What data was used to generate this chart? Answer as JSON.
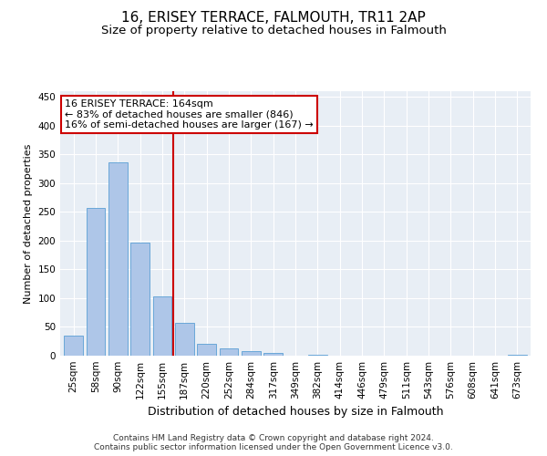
{
  "title": "16, ERISEY TERRACE, FALMOUTH, TR11 2AP",
  "subtitle": "Size of property relative to detached houses in Falmouth",
  "xlabel": "Distribution of detached houses by size in Falmouth",
  "ylabel": "Number of detached properties",
  "categories": [
    "25sqm",
    "58sqm",
    "90sqm",
    "122sqm",
    "155sqm",
    "187sqm",
    "220sqm",
    "252sqm",
    "284sqm",
    "317sqm",
    "349sqm",
    "382sqm",
    "414sqm",
    "446sqm",
    "479sqm",
    "511sqm",
    "543sqm",
    "576sqm",
    "608sqm",
    "641sqm",
    "673sqm"
  ],
  "values": [
    35,
    257,
    336,
    197,
    103,
    57,
    20,
    13,
    8,
    5,
    0,
    2,
    0,
    0,
    0,
    0,
    0,
    0,
    0,
    0,
    2
  ],
  "bar_color": "#aec6e8",
  "bar_edge_color": "#5a9fd4",
  "annotation_line1": "16 ERISEY TERRACE: 164sqm",
  "annotation_line2": "← 83% of detached houses are smaller (846)",
  "annotation_line3": "16% of semi-detached houses are larger (167) →",
  "annotation_box_color": "#cc0000",
  "vline_x_index": 4.5,
  "vline_color": "#cc0000",
  "ylim": [
    0,
    460
  ],
  "yticks": [
    0,
    50,
    100,
    150,
    200,
    250,
    300,
    350,
    400,
    450
  ],
  "background_color": "#e8eef5",
  "grid_color": "#ffffff",
  "footer_line1": "Contains HM Land Registry data © Crown copyright and database right 2024.",
  "footer_line2": "Contains public sector information licensed under the Open Government Licence v3.0.",
  "title_fontsize": 11,
  "subtitle_fontsize": 9.5,
  "ylabel_fontsize": 8,
  "xlabel_fontsize": 9,
  "tick_fontsize": 7.5,
  "footer_fontsize": 6.5,
  "annotation_fontsize": 8
}
